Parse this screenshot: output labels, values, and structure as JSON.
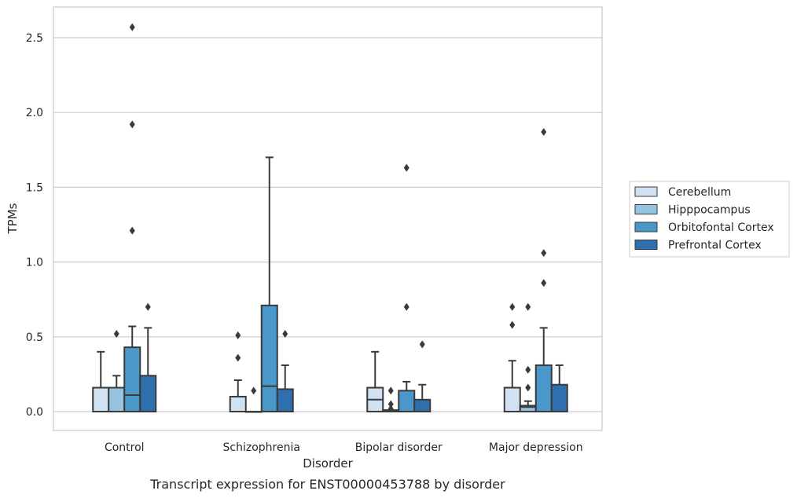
{
  "caption": "Transcript expression for ENST00000453788 by disorder",
  "chart_data": {
    "type": "box",
    "xlabel": "Disorder",
    "ylabel": "TPMs",
    "ylim": [
      -0.125,
      2.7
    ],
    "yticks": [
      0.0,
      0.5,
      1.0,
      1.5,
      2.0,
      2.5
    ],
    "ytick_labels": [
      "0.0",
      "0.5",
      "1.0",
      "1.5",
      "2.0",
      "2.5"
    ],
    "grid": "horizontal",
    "legend_position": "right",
    "categories": [
      "Control",
      "Schizophrenia",
      "Bipolar disorder",
      "Major depression"
    ],
    "series": [
      {
        "name": "Cerebellum",
        "color": "#d0e1f2",
        "boxes": [
          {
            "min": 0.0,
            "q1": 0.0,
            "median": 0.0,
            "q3": 0.16,
            "max": 0.4,
            "outliers": []
          },
          {
            "min": 0.0,
            "q1": 0.0,
            "median": 0.0,
            "q3": 0.1,
            "max": 0.21,
            "outliers": [
              0.36,
              0.51
            ]
          },
          {
            "min": 0.0,
            "q1": 0.0,
            "median": 0.08,
            "q3": 0.16,
            "max": 0.4,
            "outliers": []
          },
          {
            "min": 0.0,
            "q1": 0.0,
            "median": 0.0,
            "q3": 0.16,
            "max": 0.34,
            "outliers": [
              0.58,
              0.7
            ]
          }
        ]
      },
      {
        "name": "Hipppocampus",
        "color": "#94c4df",
        "boxes": [
          {
            "min": 0.0,
            "q1": 0.0,
            "median": 0.0,
            "q3": 0.16,
            "max": 0.24,
            "outliers": [
              0.52
            ]
          },
          {
            "min": 0.0,
            "q1": 0.0,
            "median": 0.0,
            "q3": 0.0,
            "max": 0.0,
            "outliers": [
              0.14
            ]
          },
          {
            "min": 0.0,
            "q1": 0.0,
            "median": 0.0,
            "q3": 0.01,
            "max": 0.01,
            "outliers": [
              0.02,
              0.05,
              0.14
            ]
          },
          {
            "min": 0.0,
            "q1": 0.0,
            "median": 0.03,
            "q3": 0.04,
            "max": 0.07,
            "outliers": [
              0.16,
              0.28,
              0.7
            ]
          }
        ]
      },
      {
        "name": "Orbitofontal Cortex",
        "color": "#4a98c9",
        "boxes": [
          {
            "min": 0.0,
            "q1": 0.0,
            "median": 0.11,
            "q3": 0.43,
            "max": 0.57,
            "outliers": [
              1.21,
              1.92,
              2.57
            ]
          },
          {
            "min": 0.0,
            "q1": 0.0,
            "median": 0.17,
            "q3": 0.71,
            "max": 1.7,
            "outliers": []
          },
          {
            "min": 0.0,
            "q1": 0.0,
            "median": 0.0,
            "q3": 0.14,
            "max": 0.2,
            "outliers": [
              0.7,
              1.63
            ]
          },
          {
            "min": 0.0,
            "q1": 0.0,
            "median": 0.0,
            "q3": 0.31,
            "max": 0.56,
            "outliers": [
              0.86,
              1.06,
              1.87
            ]
          }
        ]
      },
      {
        "name": "Prefrontal Cortex",
        "color": "#2e6fad",
        "boxes": [
          {
            "min": 0.0,
            "q1": 0.0,
            "median": 0.0,
            "q3": 0.24,
            "max": 0.56,
            "outliers": [
              0.7
            ]
          },
          {
            "min": 0.0,
            "q1": 0.0,
            "median": 0.0,
            "q3": 0.15,
            "max": 0.31,
            "outliers": [
              0.52
            ]
          },
          {
            "min": 0.0,
            "q1": 0.0,
            "median": 0.0,
            "q3": 0.08,
            "max": 0.18,
            "outliers": [
              0.45
            ]
          },
          {
            "min": 0.0,
            "q1": 0.0,
            "median": 0.0,
            "q3": 0.18,
            "max": 0.31,
            "outliers": []
          }
        ]
      }
    ]
  }
}
